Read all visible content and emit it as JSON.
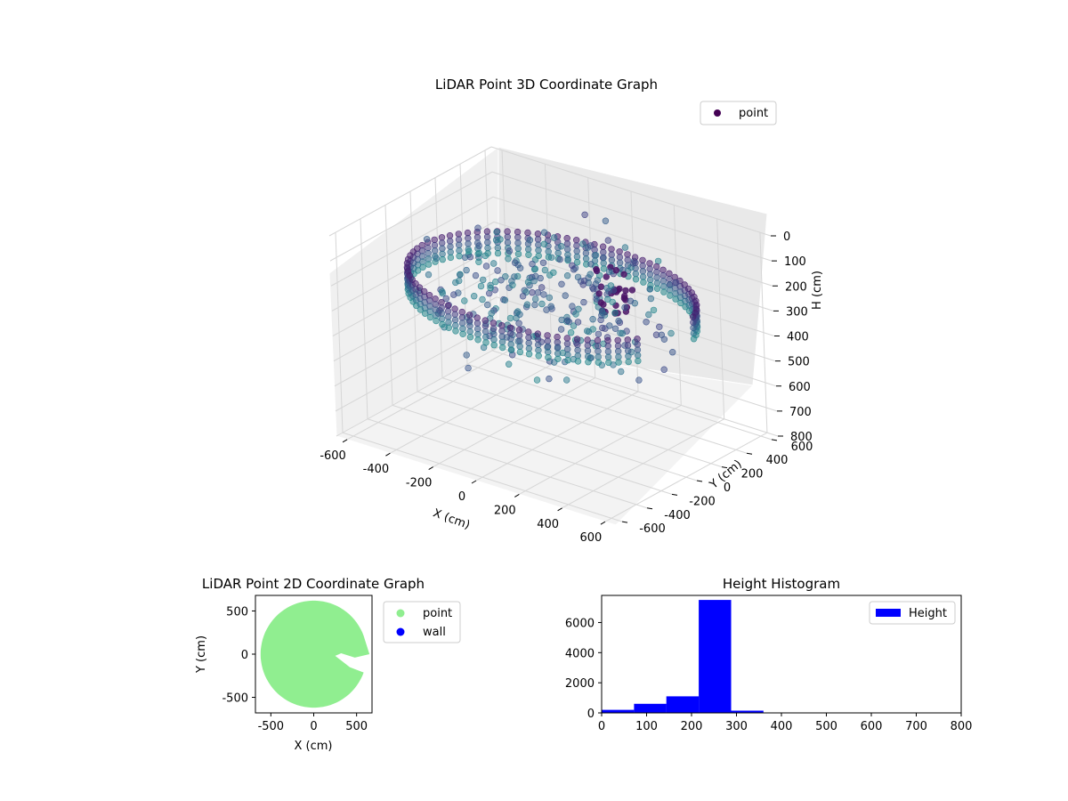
{
  "colors": {
    "viridis_dark": "#440154",
    "point2d": "#90ee90",
    "wall": "#0000ff",
    "hist": "#0000ff",
    "pane": "#f2f2f2",
    "grid": "#d0d0d0"
  },
  "chart_data": [
    {
      "type": "scatter",
      "projection": "3d",
      "title": "LiDAR Point 3D Coordinate Graph",
      "xlabel": "X (cm)",
      "ylabel": "Y (cm)",
      "zlabel": "H (cm)",
      "xlim": [
        -650,
        650
      ],
      "ylim": [
        -650,
        650
      ],
      "zlim": [
        0,
        800
      ],
      "z_inverted": true,
      "x_ticks": [
        "-600",
        "-400",
        "-200",
        "0",
        "200",
        "400",
        "600"
      ],
      "y_ticks": [
        "-600",
        "-400",
        "-200",
        "0",
        "200",
        "400",
        "600"
      ],
      "z_ticks": [
        "0",
        "100",
        "200",
        "300",
        "400",
        "500",
        "600",
        "700",
        "800"
      ],
      "legend": {
        "labels": [
          "point"
        ],
        "placement": "top-right"
      },
      "colormap": "viridis",
      "series": [
        {
          "name": "point",
          "shape": "cylindrical wall, radius ~600 cm, with a gap opening toward +X",
          "wall_radius": 600,
          "wall_gap_degrees": [
            -20,
            12
          ],
          "wall_height_range": [
            200,
            290
          ],
          "interior_height_range": [
            100,
            450
          ],
          "dark_cluster": {
            "x": 150,
            "y": 250,
            "h_range": [
              150,
              350
            ]
          }
        }
      ]
    },
    {
      "type": "scatter",
      "title": "LiDAR Point 2D Coordinate Graph",
      "xlabel": "X (cm)",
      "ylabel": "Y (cm)",
      "xlim": [
        -680,
        680
      ],
      "ylim": [
        -680,
        680
      ],
      "x_ticks": [
        "-500",
        "0",
        "500"
      ],
      "y_ticks": [
        "-500",
        "0",
        "500"
      ],
      "legend": {
        "labels": [
          "point",
          "wall"
        ],
        "placement": "outside-upper-right"
      },
      "series": [
        {
          "name": "point",
          "shape": "filled disc radius ~620 cm, notch cut from the +X side",
          "radius": 620
        },
        {
          "name": "wall"
        }
      ]
    },
    {
      "type": "bar",
      "subtype": "histogram",
      "title": "Height Histogram",
      "xlim": [
        0,
        800
      ],
      "ylim": [
        0,
        7800
      ],
      "x_ticks": [
        "0",
        "100",
        "200",
        "300",
        "400",
        "500",
        "600",
        "700",
        "800"
      ],
      "y_ticks": [
        "0",
        "2000",
        "4000",
        "6000"
      ],
      "legend": {
        "labels": [
          "Height"
        ],
        "placement": "top-right"
      },
      "bins": [
        {
          "x0": 0,
          "x1": 72,
          "count": 200
        },
        {
          "x0": 72,
          "x1": 144,
          "count": 600
        },
        {
          "x0": 144,
          "x1": 216,
          "count": 1100
        },
        {
          "x0": 216,
          "x1": 288,
          "count": 7500
        },
        {
          "x0": 288,
          "x1": 360,
          "count": 150
        },
        {
          "x0": 360,
          "x1": 432,
          "count": 0
        },
        {
          "x0": 432,
          "x1": 504,
          "count": 0
        },
        {
          "x0": 504,
          "x1": 576,
          "count": 0
        },
        {
          "x0": 576,
          "x1": 648,
          "count": 0
        },
        {
          "x0": 648,
          "x1": 720,
          "count": 0
        }
      ]
    }
  ]
}
